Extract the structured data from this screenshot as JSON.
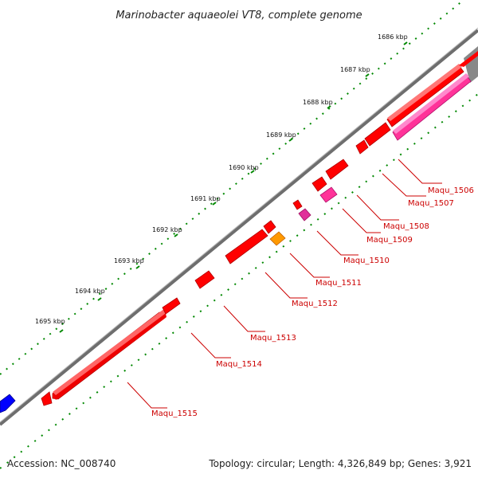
{
  "title": "Marinobacter aquaeolei VT8, complete genome",
  "footer": {
    "accession": "Accession: NC_008740",
    "topology": "Topology: circular; Length: 4,326,849 bp; Genes: 3,921"
  },
  "kbp_ticks": [
    "1686 kbp",
    "1687 kbp",
    "1688 kbp",
    "1689 kbp",
    "1690 kbp",
    "1691 kbp",
    "1692 kbp",
    "1693 kbp",
    "1694 kbp",
    "1695 kbp"
  ],
  "gene_labels": [
    "Maqu_1506",
    "Maqu_1507",
    "Maqu_1508",
    "Maqu_1509",
    "Maqu_1510",
    "Maqu_1511",
    "Maqu_1512",
    "Maqu_1513",
    "Maqu_1514",
    "Maqu_1515"
  ],
  "colors": {
    "gene_red": "#ff0000",
    "gene_pink": "#ff3399",
    "gene_magenta": "#e0309a",
    "gene_orange": "#ff9900",
    "gene_blue": "#0000ff",
    "backbone": "#777777",
    "tick_green": "#008800"
  }
}
